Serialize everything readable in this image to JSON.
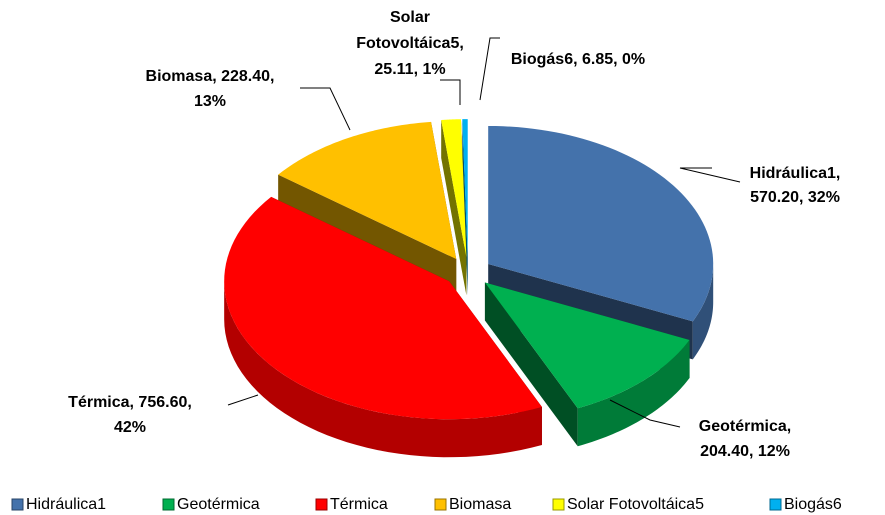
{
  "chart_data": {
    "type": "pie3d",
    "categories": [
      "Hidráulica1",
      "Geotérmica",
      "Térmica",
      "Biomasa",
      "Solar Fotovoltáica5",
      "Biogás6"
    ],
    "values": [
      570.2,
      204.4,
      756.6,
      228.4,
      25.11,
      6.85
    ],
    "value_labels": [
      [
        "Hidráulica1,",
        "570.20, 32%"
      ],
      [
        "Geotérmica,",
        "204.40, 12%"
      ],
      [
        "Térmica, 756.60,",
        "42%"
      ],
      [
        "Biomasa, 228.40,",
        "13%"
      ],
      [
        "Solar",
        "Fotovoltáica5,",
        "25.11, 1%"
      ],
      [
        "Biogás6, 6.85, 0%"
      ]
    ],
    "colors": [
      "#4472ab",
      "#00b050",
      "#ff0000",
      "#ffc000",
      "#ffff00",
      "#00b0f0"
    ],
    "legend": "bottom"
  }
}
